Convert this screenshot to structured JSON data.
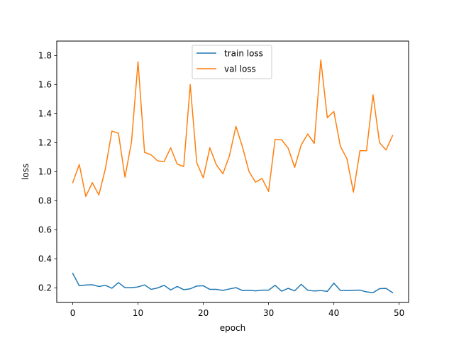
{
  "chart_data": {
    "type": "line",
    "title": "",
    "xlabel": "epoch",
    "ylabel": "loss",
    "xlim": [
      -2.45,
      51.45
    ],
    "ylim": [
      0.1,
      1.9
    ],
    "xticks": [
      0,
      10,
      20,
      30,
      40,
      50
    ],
    "yticks": [
      0.2,
      0.4,
      0.6,
      0.8,
      1.0,
      1.2,
      1.4,
      1.6,
      1.8
    ],
    "grid": false,
    "legend_position": "top-center",
    "x": [
      0,
      1,
      2,
      3,
      4,
      5,
      6,
      7,
      8,
      9,
      10,
      11,
      12,
      13,
      14,
      15,
      16,
      17,
      18,
      19,
      20,
      21,
      22,
      23,
      24,
      25,
      26,
      27,
      28,
      29,
      30,
      31,
      32,
      33,
      34,
      35,
      36,
      37,
      38,
      39,
      40,
      41,
      42,
      43,
      44,
      45,
      46,
      47,
      48,
      49
    ],
    "series": [
      {
        "name": "train loss",
        "color": "#1f77b4",
        "values": [
          0.3,
          0.215,
          0.22,
          0.222,
          0.21,
          0.218,
          0.198,
          0.237,
          0.202,
          0.202,
          0.207,
          0.221,
          0.19,
          0.2,
          0.218,
          0.186,
          0.21,
          0.188,
          0.194,
          0.213,
          0.215,
          0.19,
          0.19,
          0.183,
          0.193,
          0.202,
          0.182,
          0.184,
          0.18,
          0.185,
          0.185,
          0.218,
          0.178,
          0.197,
          0.18,
          0.225,
          0.184,
          0.179,
          0.182,
          0.176,
          0.233,
          0.183,
          0.182,
          0.184,
          0.185,
          0.173,
          0.167,
          0.195,
          0.197,
          0.167
        ]
      },
      {
        "name": "val loss",
        "color": "#ff7f0e",
        "values": [
          0.925,
          1.05,
          0.83,
          0.925,
          0.84,
          1.02,
          1.28,
          1.265,
          0.963,
          1.205,
          1.757,
          1.133,
          1.117,
          1.075,
          1.07,
          1.165,
          1.053,
          1.036,
          1.6,
          1.062,
          0.958,
          1.165,
          1.048,
          0.986,
          1.109,
          1.313,
          1.171,
          1.002,
          0.928,
          0.954,
          0.865,
          1.223,
          1.22,
          1.163,
          1.03,
          1.185,
          1.26,
          1.195,
          1.77,
          1.372,
          1.415,
          1.175,
          1.09,
          0.86,
          1.145,
          1.145,
          1.53,
          1.2,
          1.15,
          1.25
        ]
      }
    ]
  }
}
